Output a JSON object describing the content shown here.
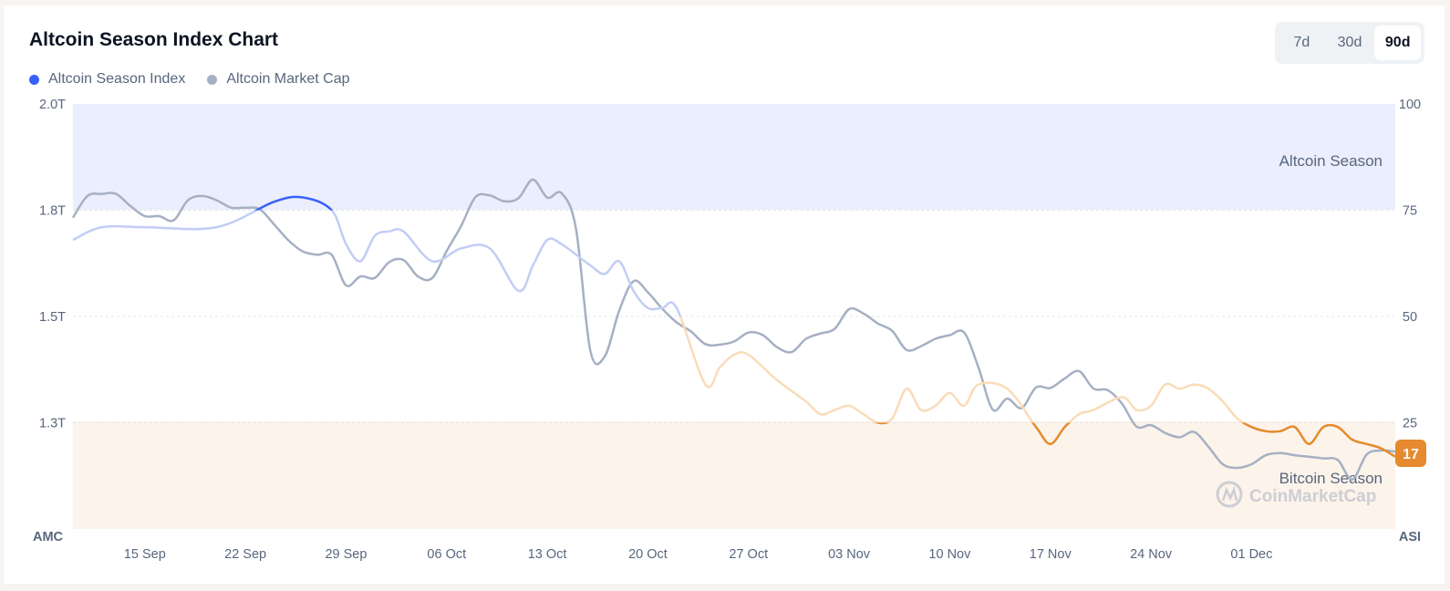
{
  "header": {
    "title": "Altcoin Season Index Chart",
    "legend": [
      {
        "label": "Altcoin Season Index",
        "color": "#3861fb"
      },
      {
        "label": "Altcoin Market Cap",
        "color": "#a6b0c3"
      }
    ],
    "ranges": [
      "7d",
      "30d",
      "90d"
    ],
    "active_range": "90d"
  },
  "watermark": "CoinMarketCap",
  "chart_data": {
    "type": "line",
    "left_axis_label": "AMC",
    "right_axis_label": "ASI",
    "left_ticks": [
      "2.0T",
      "1.8T",
      "1.5T",
      "1.3T"
    ],
    "right_ticks": [
      "100",
      "75",
      "50",
      "25"
    ],
    "x_ticks": [
      "15 Sep",
      "22 Sep",
      "29 Sep",
      "06 Oct",
      "13 Oct",
      "20 Oct",
      "27 Oct",
      "03 Nov",
      "10 Nov",
      "17 Nov",
      "24 Nov",
      "01 Dec"
    ],
    "right_ylim": [
      0,
      100
    ],
    "zones": [
      {
        "label": "Altcoin Season",
        "from": 75,
        "to": 100,
        "color": "#ebeefc"
      },
      {
        "label": "Bitcoin Season",
        "from": 0,
        "to": 25,
        "color": "#fcf3ea"
      }
    ],
    "current_value": "17",
    "series": [
      {
        "name": "Altcoin Season Index",
        "axis": "right",
        "colors": {
          "altcoin": "#3861fb",
          "neutral_alt": "#c2cdf5",
          "neutral_btc": "#f9dcb8",
          "bitcoin": "#e58a2e"
        },
        "x": [
          0,
          2,
          5,
          10,
          14,
          16,
          18,
          19,
          20,
          21,
          22,
          23,
          25,
          27,
          29,
          31,
          32,
          33,
          34,
          36,
          37,
          38,
          39,
          40,
          41,
          42,
          44,
          45,
          46,
          47,
          49,
          51,
          52,
          53,
          54,
          55,
          56,
          57,
          58,
          59,
          60,
          61,
          62,
          63,
          65,
          67,
          68,
          69,
          70,
          71,
          73,
          74,
          75,
          76,
          77,
          78,
          79,
          80,
          81,
          82,
          83,
          84,
          85,
          86,
          87,
          88,
          89,
          90,
          91,
          92
        ],
        "y": [
          68,
          71,
          71,
          71,
          77,
          78,
          75,
          67,
          63,
          69,
          70,
          70,
          63,
          66,
          66,
          56,
          62,
          68,
          67,
          62,
          60,
          63,
          56,
          52,
          52,
          52,
          34,
          38,
          41,
          41,
          35,
          30,
          27,
          28,
          29,
          27,
          25,
          26,
          33,
          28,
          29,
          32,
          29,
          34,
          33,
          24,
          20,
          24,
          27,
          28,
          31,
          28,
          29,
          34,
          33,
          34,
          33,
          30,
          26,
          24,
          23,
          23,
          24,
          20,
          24,
          24,
          21,
          20,
          19,
          17
        ]
      },
      {
        "name": "Altcoin Market Cap",
        "axis": "left",
        "x": [
          0,
          1,
          2,
          3,
          4,
          5,
          6,
          7,
          8,
          9,
          10,
          11,
          12,
          13,
          14,
          15,
          16,
          17,
          18,
          19,
          20,
          21,
          22,
          23,
          24,
          25,
          26,
          27,
          28,
          29,
          30,
          31,
          32,
          33,
          34,
          35,
          36,
          37,
          38,
          39,
          40,
          41,
          42,
          43,
          44,
          45,
          46,
          47,
          48,
          49,
          50,
          51,
          52,
          53,
          54,
          55,
          56,
          57,
          58,
          59,
          60,
          61,
          62,
          63,
          64,
          65,
          66,
          67,
          68,
          69,
          70,
          71,
          72,
          73,
          74,
          75,
          76,
          77,
          78,
          79,
          80,
          81,
          82,
          83,
          84,
          85,
          86,
          87,
          88,
          89,
          90,
          91,
          92
        ],
        "y": [
          1.785,
          1.826,
          1.83,
          1.83,
          1.807,
          1.788,
          1.788,
          1.78,
          1.818,
          1.826,
          1.818,
          1.804,
          1.804,
          1.801,
          1.772,
          1.742,
          1.721,
          1.715,
          1.715,
          1.657,
          1.674,
          1.671,
          1.701,
          1.705,
          1.674,
          1.671,
          1.722,
          1.769,
          1.824,
          1.827,
          1.816,
          1.822,
          1.857,
          1.823,
          1.831,
          1.764,
          1.533,
          1.523,
          1.609,
          1.665,
          1.644,
          1.613,
          1.587,
          1.57,
          1.546,
          1.545,
          1.551,
          1.568,
          1.563,
          1.54,
          1.531,
          1.556,
          1.566,
          1.575,
          1.612,
          1.604,
          1.585,
          1.571,
          1.535,
          1.542,
          1.556,
          1.563,
          1.568,
          1.502,
          1.422,
          1.443,
          1.425,
          1.464,
          1.463,
          1.481,
          1.495,
          1.462,
          1.459,
          1.433,
          1.39,
          1.393,
          1.378,
          1.37,
          1.38,
          1.352,
          1.319,
          1.312,
          1.319,
          1.336,
          1.34,
          1.336,
          1.333,
          1.33,
          1.327,
          1.29,
          1.337,
          1.345,
          1.343
        ]
      }
    ]
  }
}
